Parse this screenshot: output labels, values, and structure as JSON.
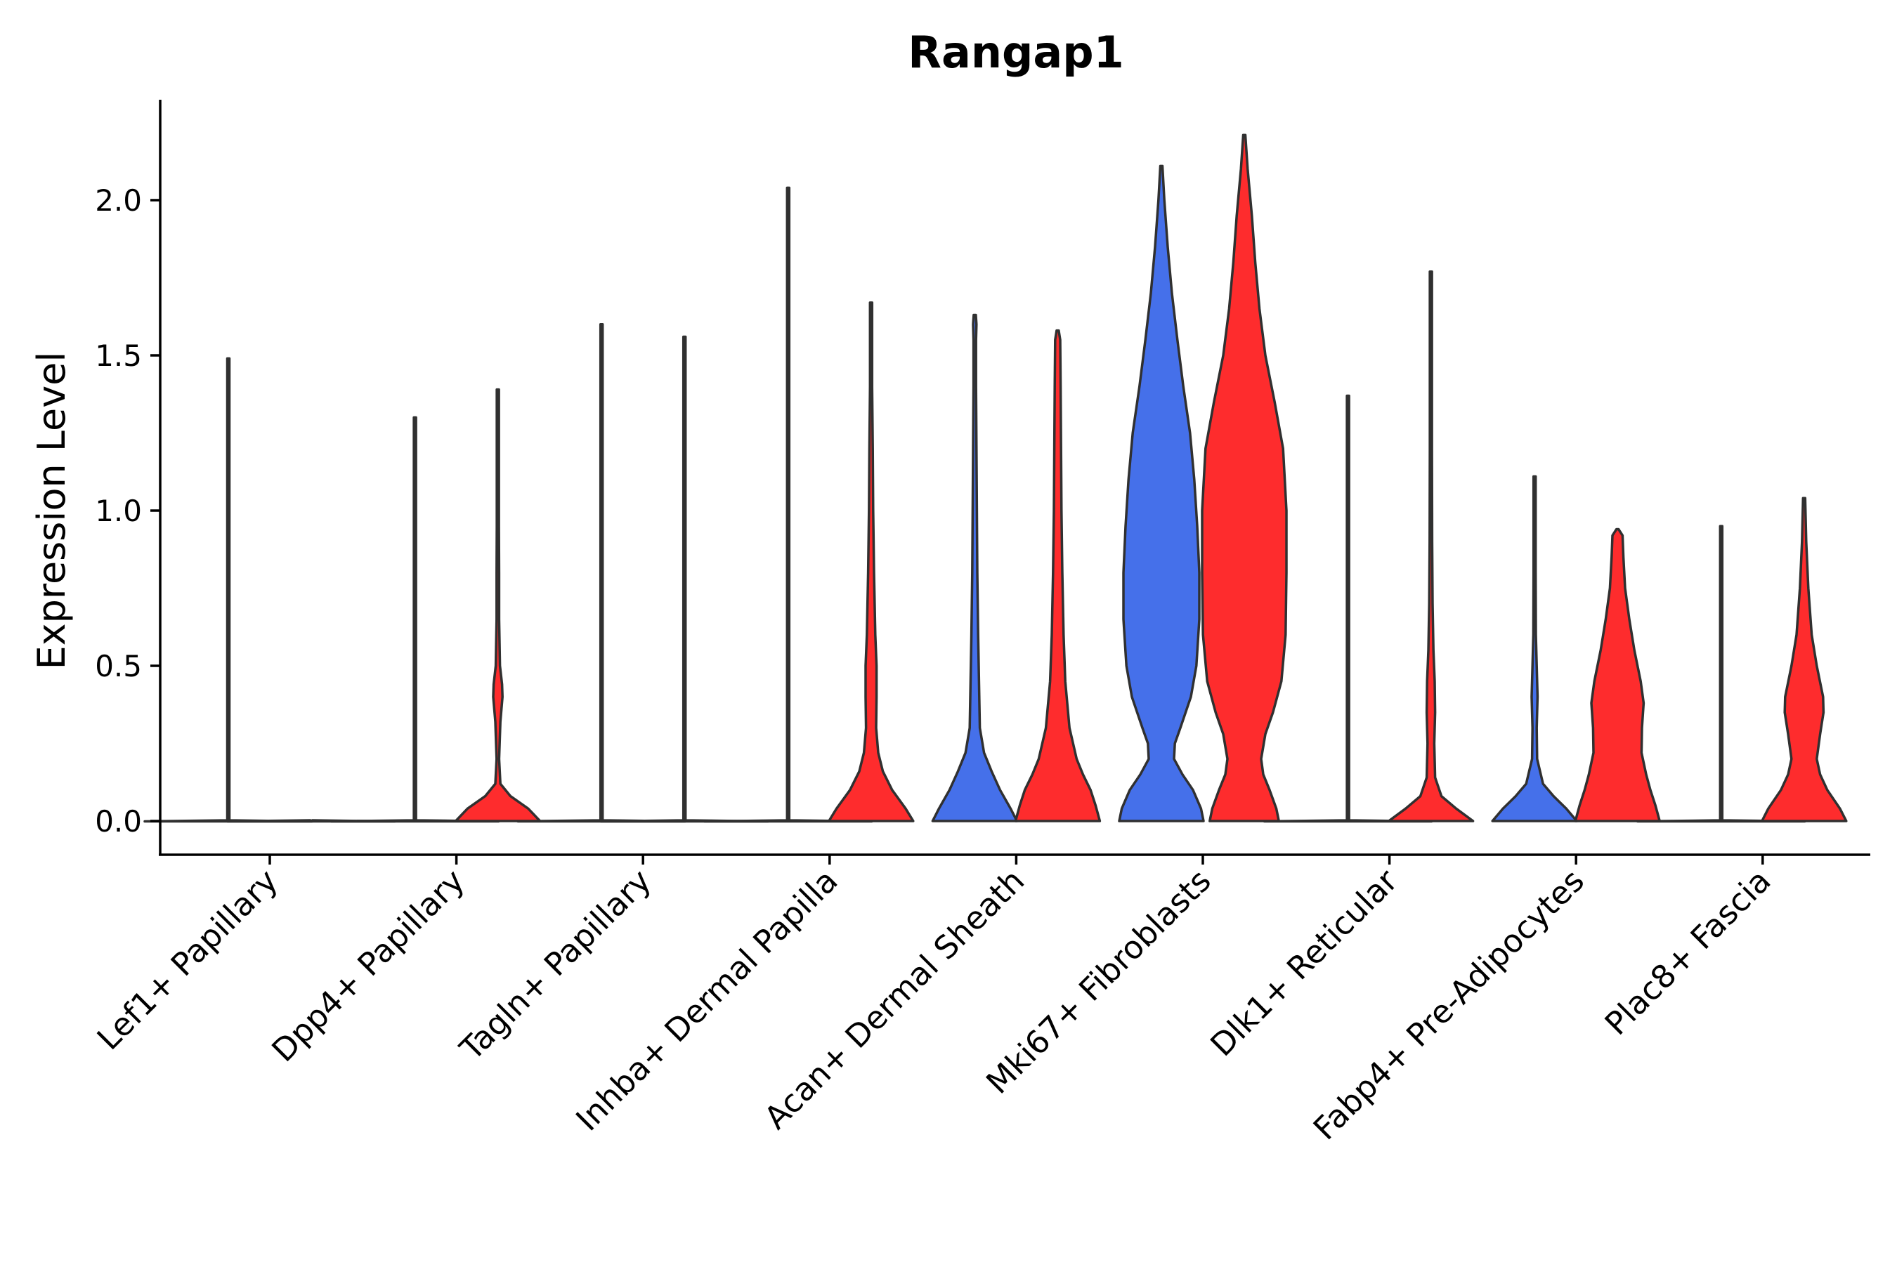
{
  "chart_data": {
    "type": "violin",
    "title": "Rangap1",
    "xlabel": "",
    "ylabel": "Expression Level",
    "ylim": [
      -0.11,
      2.33
    ],
    "yticks": [
      0.0,
      0.5,
      1.0,
      1.5,
      2.0
    ],
    "ytick_labels": [
      "0.0",
      "0.5",
      "1.0",
      "1.5",
      "2.0"
    ],
    "grid": false,
    "legend": "none",
    "colors": {
      "group_a": "#4570EA",
      "group_b": "#FE2C2D",
      "outline": "#303030"
    },
    "categories": [
      "Lef1+ Papillary",
      "Dpp4+ Papillary",
      "Tagln+ Papillary",
      "Inhba+ Dermal Papilla",
      "Acan+ Dermal Sheath",
      "Mki67+ Fibroblasts",
      "Dlk1+ Reticular",
      "Fabp4+ Pre-Adipocytes",
      "Plac8+ Fascia"
    ],
    "violins": [
      {
        "category": "Lef1+ Papillary",
        "group": "a",
        "max": 1.49,
        "flat": true,
        "profile": []
      },
      {
        "category": "Lef1+ Papillary",
        "group": "b",
        "max": 0.0,
        "flat": true,
        "profile": []
      },
      {
        "category": "Dpp4+ Papillary",
        "group": "a",
        "max": 1.3,
        "flat": true,
        "profile": []
      },
      {
        "category": "Dpp4+ Papillary",
        "group": "b",
        "max": 1.39,
        "flat": false,
        "profile": [
          [
            0,
            1.0
          ],
          [
            0.04,
            0.72
          ],
          [
            0.08,
            0.3
          ],
          [
            0.12,
            0.06
          ],
          [
            0.2,
            0.03
          ],
          [
            0.32,
            0.06
          ],
          [
            0.4,
            0.11
          ],
          [
            0.44,
            0.1
          ],
          [
            0.5,
            0.05
          ],
          [
            0.65,
            0.03
          ],
          [
            0.8,
            0.03
          ],
          [
            0.95,
            0.02
          ],
          [
            1.1,
            0.01
          ],
          [
            1.39,
            0.0
          ]
        ]
      },
      {
        "category": "Tagln+ Papillary",
        "group": "a",
        "max": 1.6,
        "flat": true,
        "profile": []
      },
      {
        "category": "Tagln+ Papillary",
        "group": "b",
        "max": 1.56,
        "flat": true,
        "profile": []
      },
      {
        "category": "Inhba+ Dermal Papilla",
        "group": "a",
        "max": 2.04,
        "flat": true,
        "profile": []
      },
      {
        "category": "Inhba+ Dermal Papilla",
        "group": "b",
        "max": 1.67,
        "flat": false,
        "profile": [
          [
            0,
            1.0
          ],
          [
            0.04,
            0.82
          ],
          [
            0.1,
            0.5
          ],
          [
            0.16,
            0.28
          ],
          [
            0.22,
            0.17
          ],
          [
            0.3,
            0.12
          ],
          [
            0.4,
            0.13
          ],
          [
            0.5,
            0.13
          ],
          [
            0.6,
            0.1
          ],
          [
            0.8,
            0.07
          ],
          [
            1.0,
            0.05
          ],
          [
            1.2,
            0.04
          ],
          [
            1.4,
            0.02
          ],
          [
            1.67,
            0.0
          ]
        ]
      },
      {
        "category": "Acan+ Dermal Sheath",
        "group": "a",
        "max": 1.63,
        "flat": false,
        "profile": [
          [
            0,
            1.0
          ],
          [
            0.04,
            0.85
          ],
          [
            0.1,
            0.6
          ],
          [
            0.16,
            0.4
          ],
          [
            0.22,
            0.22
          ],
          [
            0.3,
            0.12
          ],
          [
            0.45,
            0.1
          ],
          [
            0.6,
            0.08
          ],
          [
            0.8,
            0.06
          ],
          [
            1.0,
            0.05
          ],
          [
            1.2,
            0.04
          ],
          [
            1.4,
            0.03
          ],
          [
            1.55,
            0.03
          ],
          [
            1.6,
            0.04
          ],
          [
            1.63,
            0.0
          ]
        ]
      },
      {
        "category": "Acan+ Dermal Sheath",
        "group": "b",
        "max": 1.58,
        "flat": false,
        "profile": [
          [
            0,
            1.0
          ],
          [
            0.05,
            0.9
          ],
          [
            0.1,
            0.78
          ],
          [
            0.15,
            0.6
          ],
          [
            0.2,
            0.45
          ],
          [
            0.3,
            0.28
          ],
          [
            0.45,
            0.18
          ],
          [
            0.6,
            0.14
          ],
          [
            0.8,
            0.11
          ],
          [
            1.0,
            0.09
          ],
          [
            1.2,
            0.08
          ],
          [
            1.4,
            0.07
          ],
          [
            1.55,
            0.06
          ],
          [
            1.58,
            0.0
          ]
        ]
      },
      {
        "category": "Mki67+ Fibroblasts",
        "group": "a",
        "max": 2.11,
        "flat": false,
        "profile": [
          [
            0,
            1.0
          ],
          [
            0.04,
            0.94
          ],
          [
            0.1,
            0.75
          ],
          [
            0.15,
            0.5
          ],
          [
            0.2,
            0.3
          ],
          [
            0.25,
            0.32
          ],
          [
            0.3,
            0.45
          ],
          [
            0.4,
            0.7
          ],
          [
            0.5,
            0.83
          ],
          [
            0.65,
            0.9
          ],
          [
            0.8,
            0.9
          ],
          [
            0.95,
            0.85
          ],
          [
            1.1,
            0.78
          ],
          [
            1.25,
            0.68
          ],
          [
            1.4,
            0.52
          ],
          [
            1.55,
            0.38
          ],
          [
            1.7,
            0.25
          ],
          [
            1.85,
            0.15
          ],
          [
            2.0,
            0.07
          ],
          [
            2.11,
            0.0
          ]
        ]
      },
      {
        "category": "Mki67+ Fibroblasts",
        "group": "b",
        "max": 2.21,
        "flat": false,
        "profile": [
          [
            0,
            0.82
          ],
          [
            0.04,
            0.76
          ],
          [
            0.1,
            0.6
          ],
          [
            0.15,
            0.45
          ],
          [
            0.2,
            0.4
          ],
          [
            0.28,
            0.5
          ],
          [
            0.35,
            0.68
          ],
          [
            0.45,
            0.88
          ],
          [
            0.6,
            0.98
          ],
          [
            0.8,
            1.0
          ],
          [
            1.0,
            1.0
          ],
          [
            1.2,
            0.92
          ],
          [
            1.35,
            0.72
          ],
          [
            1.5,
            0.5
          ],
          [
            1.65,
            0.36
          ],
          [
            1.8,
            0.26
          ],
          [
            1.95,
            0.18
          ],
          [
            2.1,
            0.08
          ],
          [
            2.21,
            0.0
          ]
        ]
      },
      {
        "category": "Dlk1+ Reticular",
        "group": "a",
        "max": 1.37,
        "flat": true,
        "profile": []
      },
      {
        "category": "Dlk1+ Reticular",
        "group": "b",
        "max": 1.77,
        "flat": false,
        "profile": [
          [
            0,
            1.0
          ],
          [
            0.04,
            0.6
          ],
          [
            0.08,
            0.25
          ],
          [
            0.14,
            0.1
          ],
          [
            0.25,
            0.08
          ],
          [
            0.35,
            0.1
          ],
          [
            0.45,
            0.09
          ],
          [
            0.55,
            0.06
          ],
          [
            0.7,
            0.04
          ],
          [
            0.9,
            0.03
          ],
          [
            1.2,
            0.02
          ],
          [
            1.5,
            0.01
          ],
          [
            1.77,
            0.0
          ]
        ]
      },
      {
        "category": "Fabp4+ Pre-Adipocytes",
        "group": "a",
        "max": 1.11,
        "flat": false,
        "profile": [
          [
            0,
            1.0
          ],
          [
            0.04,
            0.75
          ],
          [
            0.08,
            0.45
          ],
          [
            0.12,
            0.2
          ],
          [
            0.2,
            0.06
          ],
          [
            0.3,
            0.05
          ],
          [
            0.4,
            0.07
          ],
          [
            0.5,
            0.05
          ],
          [
            0.6,
            0.03
          ],
          [
            0.8,
            0.02
          ],
          [
            1.0,
            0.01
          ],
          [
            1.11,
            0.0
          ]
        ]
      },
      {
        "category": "Fabp4+ Pre-Adipocytes",
        "group": "b",
        "max": 0.94,
        "flat": false,
        "profile": [
          [
            0,
            1.0
          ],
          [
            0.05,
            0.9
          ],
          [
            0.1,
            0.78
          ],
          [
            0.15,
            0.68
          ],
          [
            0.22,
            0.57
          ],
          [
            0.3,
            0.58
          ],
          [
            0.38,
            0.62
          ],
          [
            0.45,
            0.55
          ],
          [
            0.55,
            0.4
          ],
          [
            0.65,
            0.28
          ],
          [
            0.75,
            0.18
          ],
          [
            0.85,
            0.14
          ],
          [
            0.92,
            0.12
          ],
          [
            0.94,
            0.0
          ]
        ]
      },
      {
        "category": "Plac8+ Fascia",
        "group": "a",
        "max": 0.95,
        "flat": true,
        "profile": []
      },
      {
        "category": "Plac8+ Fascia",
        "group": "b",
        "max": 1.04,
        "flat": false,
        "profile": [
          [
            0,
            1.0
          ],
          [
            0.04,
            0.85
          ],
          [
            0.1,
            0.55
          ],
          [
            0.15,
            0.38
          ],
          [
            0.2,
            0.3
          ],
          [
            0.28,
            0.38
          ],
          [
            0.35,
            0.46
          ],
          [
            0.4,
            0.45
          ],
          [
            0.5,
            0.3
          ],
          [
            0.6,
            0.18
          ],
          [
            0.75,
            0.1
          ],
          [
            0.9,
            0.05
          ],
          [
            1.04,
            0.0
          ]
        ]
      }
    ]
  }
}
